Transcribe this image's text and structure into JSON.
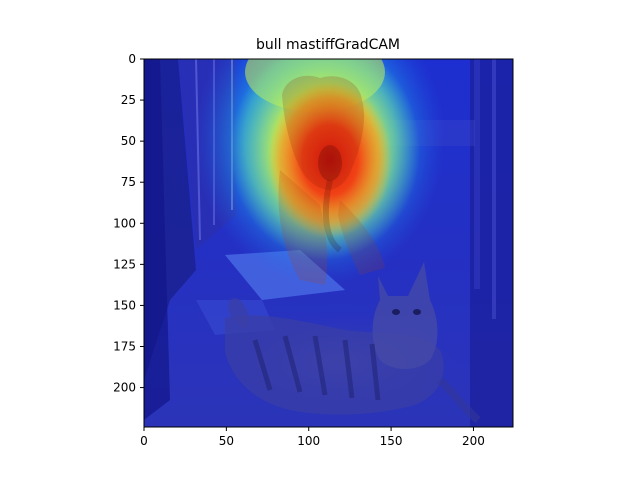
{
  "figure": {
    "title": "bull mastiffGradCAM"
  },
  "axes": {
    "xlim": [
      0,
      224
    ],
    "ylim": [
      224,
      0
    ],
    "x_ticks": [
      {
        "value": 0,
        "label": "0"
      },
      {
        "value": 50,
        "label": "50"
      },
      {
        "value": 100,
        "label": "100"
      },
      {
        "value": 150,
        "label": "150"
      },
      {
        "value": 200,
        "label": "200"
      }
    ],
    "y_ticks": [
      {
        "value": 0,
        "label": "0"
      },
      {
        "value": 25,
        "label": "25"
      },
      {
        "value": 50,
        "label": "50"
      },
      {
        "value": 75,
        "label": "75"
      },
      {
        "value": 100,
        "label": "100"
      },
      {
        "value": 125,
        "label": "125"
      },
      {
        "value": 150,
        "label": "150"
      },
      {
        "value": 175,
        "label": "175"
      },
      {
        "value": 200,
        "label": "200"
      }
    ]
  },
  "image_content": {
    "subjects": [
      "bull mastiff",
      "cat"
    ],
    "colormap": "jet"
  }
}
